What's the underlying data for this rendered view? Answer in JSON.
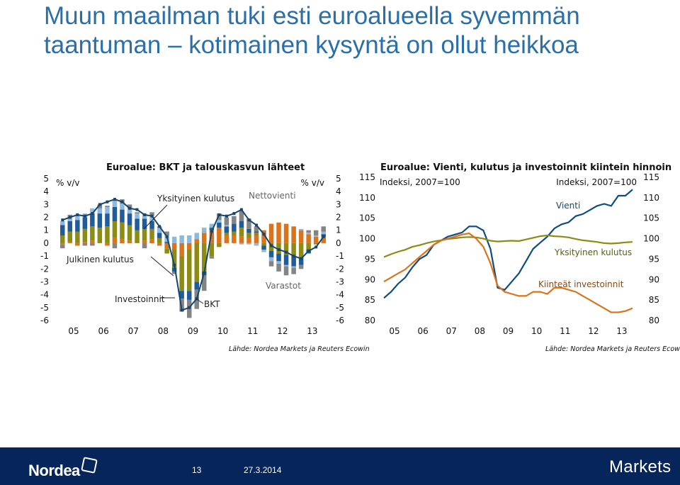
{
  "slide": {
    "title": "Muun maailman tuki esti euroalueella syvemmän taantuman – kotimainen kysyntä on ollut heikkoa"
  },
  "footer": {
    "brand": "Nordea",
    "page_number": "13",
    "date": "27.3.2014",
    "unit": "Markets"
  },
  "colors": {
    "julkinen": "#8fb9dc",
    "yksityinen": "#1f5c99",
    "investoinnit": "#8c8c14",
    "varastot": "#848484",
    "nettovienti": "#d9731c",
    "bkt": "#16466e",
    "vienti": "#0f4c81",
    "yksityinen_line": "#8c8c14",
    "kiinteat": "#d9731c",
    "footer_bg": "#06255a",
    "title": "#2b6fa8"
  },
  "chart_data": [
    {
      "type": "bar",
      "stacked": true,
      "title": "Euroalue: BKT ja talouskasvun lähteet",
      "source": "Lähde: Nordea Markets ja Reuters Ecowin",
      "ylabel_left": "% v/v",
      "ylabel_right": "% v/v",
      "ylim": [
        -6,
        5
      ],
      "yticks": [
        5,
        4,
        3,
        2,
        1,
        0,
        -1,
        -2,
        -3,
        -4,
        -5,
        -6
      ],
      "x_tick_labels": [
        "05",
        "06",
        "07",
        "08",
        "09",
        "10",
        "11",
        "12",
        "13"
      ],
      "x": [
        "05Q1",
        "05Q2",
        "05Q3",
        "05Q4",
        "06Q1",
        "06Q2",
        "06Q3",
        "06Q4",
        "07Q1",
        "07Q2",
        "07Q3",
        "07Q4",
        "08Q1",
        "08Q2",
        "08Q3",
        "08Q4",
        "09Q1",
        "09Q2",
        "09Q3",
        "09Q4",
        "10Q1",
        "10Q2",
        "10Q3",
        "10Q4",
        "11Q1",
        "11Q2",
        "11Q3",
        "11Q4",
        "12Q1",
        "12Q2",
        "12Q3",
        "12Q4",
        "13Q1",
        "13Q2",
        "13Q3",
        "13Q4"
      ],
      "annotations": [
        "Yksityinen kulutus",
        "Nettovienti",
        "Julkinen kulutus",
        "Investoinnit",
        "BKT",
        "Varastot"
      ],
      "series": [
        {
          "name": "Nettovienti",
          "color_key": "nettovienti",
          "values": [
            -0.1,
            0.1,
            -0.2,
            0.1,
            0.2,
            0.0,
            -0.2,
            0.4,
            0.3,
            0.2,
            0.0,
            0.2,
            0.3,
            -0.2,
            -0.4,
            -0.5,
            -1.0,
            -0.5,
            0.3,
            0.8,
            1.0,
            1.2,
            0.6,
            0.6,
            0.5,
            0.4,
            0.6,
            1.0,
            1.5,
            1.6,
            1.5,
            1.3,
            1.0,
            0.7,
            0.5,
            0.4
          ]
        },
        {
          "name": "Investoinnit",
          "color_key": "investoinnit",
          "values": [
            0.6,
            0.8,
            0.9,
            1.0,
            1.1,
            1.2,
            1.3,
            1.3,
            1.3,
            1.2,
            1.0,
            0.9,
            0.8,
            0.4,
            -0.4,
            -1.4,
            -2.7,
            -3.2,
            -3.0,
            -2.2,
            -1.0,
            -0.3,
            0.2,
            0.3,
            0.7,
            0.4,
            0.2,
            -0.2,
            -0.6,
            -0.8,
            -0.9,
            -1.0,
            -1.1,
            -0.5,
            -0.1,
            0.1
          ]
        },
        {
          "name": "Yksityinen kulutus",
          "color_key": "yksityinen",
          "values": [
            0.8,
            0.8,
            0.9,
            0.9,
            1.0,
            1.1,
            1.0,
            1.1,
            1.0,
            0.9,
            0.9,
            0.8,
            0.6,
            0.4,
            0.1,
            -0.3,
            -0.6,
            -0.7,
            -0.6,
            -0.3,
            0.2,
            0.4,
            0.5,
            0.6,
            0.5,
            0.3,
            0.1,
            -0.3,
            -0.5,
            -0.6,
            -0.8,
            -0.8,
            -0.6,
            -0.3,
            0.0,
            0.2
          ]
        },
        {
          "name": "Julkinen kulutus",
          "color_key": "julkinen",
          "values": [
            0.3,
            0.3,
            0.4,
            0.3,
            0.4,
            0.4,
            0.5,
            0.5,
            0.5,
            0.4,
            0.4,
            0.4,
            0.5,
            0.4,
            0.5,
            0.5,
            0.6,
            0.6,
            0.5,
            0.4,
            0.3,
            0.2,
            0.1,
            0.0,
            -0.1,
            -0.1,
            -0.2,
            -0.2,
            -0.3,
            -0.2,
            -0.1,
            -0.1,
            0.1,
            0.1,
            0.1,
            0.2
          ]
        },
        {
          "name": "Varastot",
          "color_key": "varastot",
          "values": [
            -0.3,
            0.2,
            0.0,
            -0.2,
            -0.2,
            0.3,
            0.1,
            -0.4,
            0.3,
            0.3,
            0.1,
            -0.4,
            0.2,
            0.1,
            0.3,
            -0.2,
            -1.0,
            -1.4,
            -1.5,
            -1.2,
            -0.2,
            0.5,
            0.6,
            0.6,
            0.8,
            0.8,
            0.4,
            0.0,
            -0.4,
            -0.6,
            -0.7,
            -0.5,
            -0.3,
            0.2,
            0.4,
            0.4
          ]
        },
        {
          "name": "BKT",
          "type": "line",
          "color_key": "bkt",
          "values": [
            1.8,
            2.0,
            2.2,
            2.1,
            2.3,
            3.0,
            3.2,
            3.4,
            3.2,
            2.7,
            2.6,
            2.2,
            2.1,
            1.3,
            0.5,
            -1.7,
            -5.2,
            -5.0,
            -4.3,
            -2.3,
            0.9,
            2.2,
            2.1,
            2.3,
            2.6,
            1.8,
            1.4,
            0.7,
            -0.2,
            -0.5,
            -0.7,
            -1.0,
            -1.2,
            -0.6,
            -0.3,
            0.5
          ]
        }
      ]
    },
    {
      "type": "line",
      "title": "Euroalue: Vienti, kulutus ja investoinnit kiintein hinnoin",
      "source": "Lähde: Nordea Markets ja Reuters Ecowin",
      "ylabel_left": "Indeksi, 2007=100",
      "ylabel_right": "Indeksi, 2007=100",
      "ylim": [
        80,
        115
      ],
      "yticks": [
        115,
        110,
        105,
        100,
        95,
        90,
        85,
        80
      ],
      "x_tick_labels": [
        "05",
        "06",
        "07",
        "08",
        "09",
        "10",
        "11",
        "12",
        "13"
      ],
      "x": [
        "05Q1",
        "05Q2",
        "05Q3",
        "05Q4",
        "06Q1",
        "06Q2",
        "06Q3",
        "06Q4",
        "07Q1",
        "07Q2",
        "07Q3",
        "07Q4",
        "08Q1",
        "08Q2",
        "08Q3",
        "08Q4",
        "09Q1",
        "09Q2",
        "09Q3",
        "09Q4",
        "10Q1",
        "10Q2",
        "10Q3",
        "10Q4",
        "11Q1",
        "11Q2",
        "11Q3",
        "11Q4",
        "12Q1",
        "12Q2",
        "12Q3",
        "12Q4",
        "13Q1",
        "13Q2",
        "13Q3",
        "13Q4"
      ],
      "series": [
        {
          "name": "Vienti",
          "color_key": "vienti",
          "values": [
            85.5,
            87.0,
            89.0,
            90.5,
            93.0,
            95.0,
            96.0,
            98.5,
            99.5,
            100.5,
            101.0,
            101.5,
            103.0,
            103.0,
            102.0,
            97.5,
            88.0,
            87.5,
            89.5,
            91.5,
            94.5,
            97.5,
            99.0,
            100.5,
            102.5,
            103.5,
            104.0,
            105.5,
            106.0,
            107.0,
            108.0,
            108.5,
            108.0,
            110.5,
            110.5,
            112.0
          ]
        },
        {
          "name": "Yksityinen kulutus",
          "color_key": "yksityinen_line",
          "values": [
            95.5,
            96.2,
            96.8,
            97.3,
            98.0,
            98.4,
            98.9,
            99.3,
            99.6,
            99.9,
            100.1,
            100.3,
            100.4,
            100.3,
            100.0,
            99.5,
            99.3,
            99.4,
            99.5,
            99.4,
            99.8,
            100.2,
            100.6,
            100.8,
            100.6,
            100.5,
            100.3,
            99.9,
            99.6,
            99.4,
            99.2,
            98.9,
            98.8,
            98.9,
            99.1,
            99.2
          ]
        },
        {
          "name": "Kiinteät investoinnit",
          "color_key": "kiinteat",
          "values": [
            89.5,
            90.5,
            91.5,
            92.5,
            94.0,
            95.5,
            97.0,
            98.5,
            99.5,
            100.0,
            100.5,
            101.0,
            101.3,
            100.0,
            98.0,
            94.0,
            88.5,
            87.0,
            86.5,
            86.0,
            86.0,
            87.0,
            87.0,
            86.5,
            88.0,
            88.0,
            87.5,
            87.0,
            86.0,
            85.0,
            84.0,
            83.0,
            82.0,
            82.0,
            82.3,
            83.0
          ]
        }
      ],
      "annotations": [
        "Vienti",
        "Yksityinen kulutus",
        "Kiinteät investoinnit"
      ]
    }
  ]
}
